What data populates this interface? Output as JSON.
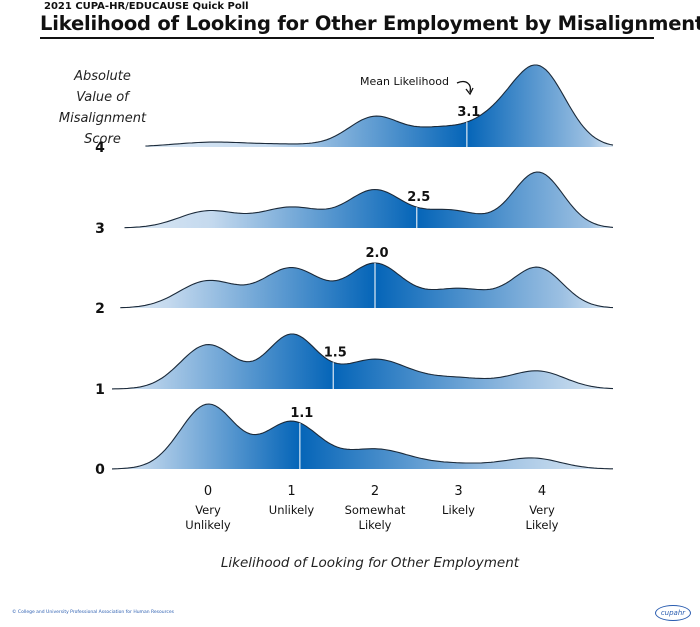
{
  "header": {
    "supertitle": "2021 CUPA-HR/EDUCAUSE Quick Poll",
    "title": "Likelihood of Looking for Other Employment by Misalignment Score"
  },
  "footer": {
    "copyright": "© College and University Professional Association for Human Resources",
    "logo_text": "cupahr"
  },
  "colors": {
    "fill_dark": "#0565b8",
    "fill_light": "#dbe8f4",
    "outline": "#1b2a3a",
    "mean_line": "#cfe0f0",
    "text": "#111111"
  },
  "chart_data": {
    "type": "ridgeline",
    "title": "Likelihood of Looking for Other Employment by Misalignment Score",
    "subtitle": "2021 CUPA-HR/EDUCAUSE Quick Poll",
    "xlabel": "Likelihood of Looking for Other Employment",
    "ylabel": [
      "Absolute",
      "Value of Misalignment",
      "Score"
    ],
    "x_ticks": [
      {
        "value": 0,
        "label": "0",
        "sublabel": [
          "Very",
          "Unlikely"
        ]
      },
      {
        "value": 1,
        "label": "1",
        "sublabel": [
          "Unlikely"
        ]
      },
      {
        "value": 2,
        "label": "2",
        "sublabel": [
          "Somewhat",
          "Likely"
        ]
      },
      {
        "value": 3,
        "label": "3",
        "sublabel": [
          "Likely"
        ]
      },
      {
        "value": 4,
        "label": "4",
        "sublabel": [
          "Very",
          "Likely"
        ]
      }
    ],
    "xlim": [
      -1.0,
      5.0
    ],
    "annotation": {
      "text": "Mean Likelihood",
      "points_to_series": "4"
    },
    "series": [
      {
        "name": "4",
        "mean": 3.1,
        "mean_label": "3.1",
        "range": [
          -0.75,
          4.85
        ],
        "density_components": [
          {
            "center": 0.05,
            "sd": 0.45,
            "weight": 0.06
          },
          {
            "center": 1.0,
            "sd": 0.4,
            "weight": 0.03
          },
          {
            "center": 2.0,
            "sd": 0.32,
            "weight": 0.38
          },
          {
            "center": 2.75,
            "sd": 0.3,
            "weight": 0.2
          },
          {
            "center": 3.95,
            "sd": 0.33,
            "weight": 1.0
          },
          {
            "center": 3.35,
            "sd": 0.3,
            "weight": 0.25
          }
        ]
      },
      {
        "name": "3",
        "mean": 2.5,
        "mean_label": "2.5",
        "range": [
          -1.0,
          4.85
        ],
        "density_components": [
          {
            "center": 0.0,
            "sd": 0.35,
            "weight": 0.27
          },
          {
            "center": 1.0,
            "sd": 0.38,
            "weight": 0.33
          },
          {
            "center": 2.0,
            "sd": 0.33,
            "weight": 0.6
          },
          {
            "center": 2.9,
            "sd": 0.35,
            "weight": 0.28
          },
          {
            "center": 3.95,
            "sd": 0.3,
            "weight": 0.9
          }
        ]
      },
      {
        "name": "2",
        "mean": 2.0,
        "mean_label": "2.0",
        "range": [
          -1.05,
          4.85
        ],
        "density_components": [
          {
            "center": 0.0,
            "sd": 0.35,
            "weight": 0.42
          },
          {
            "center": 1.0,
            "sd": 0.35,
            "weight": 0.62
          },
          {
            "center": 2.0,
            "sd": 0.32,
            "weight": 0.68
          },
          {
            "center": 3.0,
            "sd": 0.4,
            "weight": 0.3
          },
          {
            "center": 3.95,
            "sd": 0.3,
            "weight": 0.62
          }
        ]
      },
      {
        "name": "1",
        "mean": 1.5,
        "mean_label": "1.5",
        "range": [
          -1.15,
          4.85
        ],
        "density_components": [
          {
            "center": 0.0,
            "sd": 0.33,
            "weight": 0.68
          },
          {
            "center": 1.0,
            "sd": 0.3,
            "weight": 0.82
          },
          {
            "center": 2.0,
            "sd": 0.4,
            "weight": 0.45
          },
          {
            "center": 3.0,
            "sd": 0.4,
            "weight": 0.16
          },
          {
            "center": 3.95,
            "sd": 0.33,
            "weight": 0.27
          }
        ]
      },
      {
        "name": "0",
        "mean": 1.1,
        "mean_label": "1.1",
        "range": [
          -1.15,
          4.85
        ],
        "density_components": [
          {
            "center": 0.0,
            "sd": 0.33,
            "weight": 1.0
          },
          {
            "center": 1.0,
            "sd": 0.33,
            "weight": 0.72
          },
          {
            "center": 2.0,
            "sd": 0.4,
            "weight": 0.3
          },
          {
            "center": 3.0,
            "sd": 0.45,
            "weight": 0.08
          },
          {
            "center": 3.9,
            "sd": 0.33,
            "weight": 0.16
          }
        ]
      }
    ]
  }
}
